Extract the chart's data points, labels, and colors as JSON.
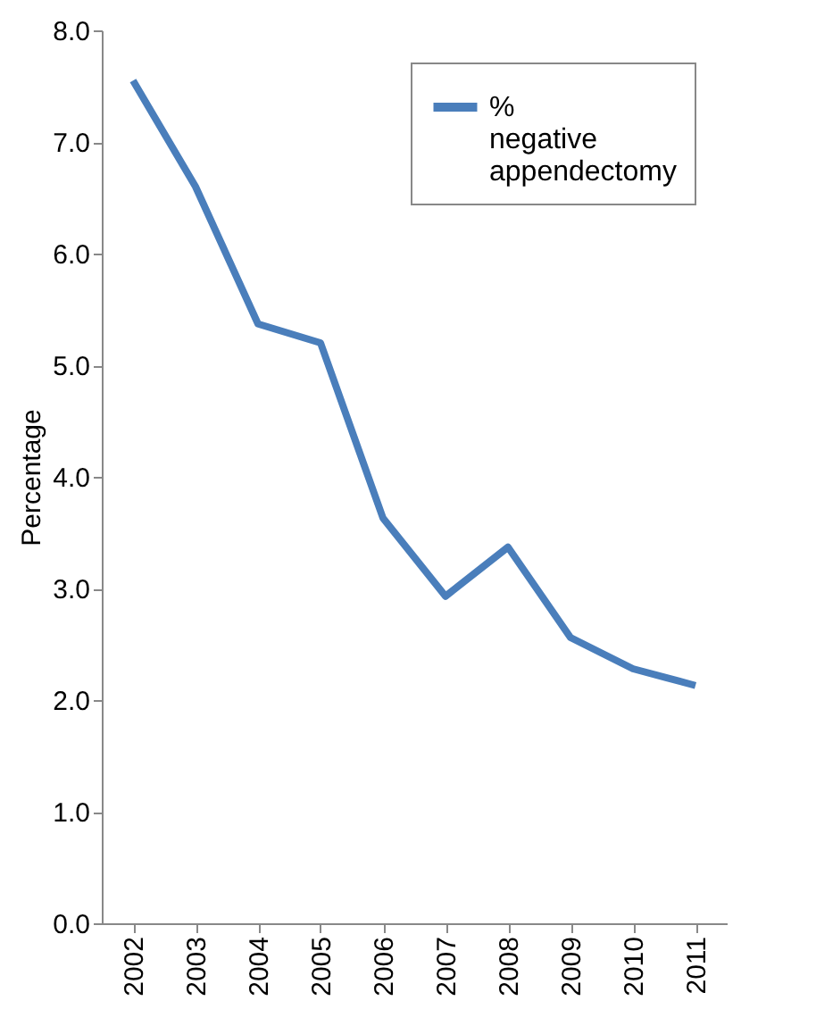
{
  "chart_data": {
    "type": "line",
    "ylabel": "Percentage",
    "categories": [
      "2002",
      "2003",
      "2004",
      "2005",
      "2006",
      "2007",
      "2008",
      "2009",
      "2010",
      "2011"
    ],
    "series": [
      {
        "name": "% negative appendectomy",
        "color": "#4a7ebb",
        "values": [
          7.55,
          6.6,
          5.37,
          5.2,
          3.63,
          2.93,
          3.37,
          2.56,
          2.28,
          2.13
        ]
      }
    ],
    "ylim": [
      0,
      8
    ],
    "yticks": [
      {
        "value": 0,
        "label": "0.0"
      },
      {
        "value": 1,
        "label": "1.0"
      },
      {
        "value": 2,
        "label": "2.0"
      },
      {
        "value": 3,
        "label": "3.0"
      },
      {
        "value": 4,
        "label": "4.0"
      },
      {
        "value": 5,
        "label": "5.0"
      },
      {
        "value": 6,
        "label": "6.0"
      },
      {
        "value": 7,
        "label": "7.0"
      },
      {
        "value": 8,
        "label": "8.0"
      }
    ],
    "grid": false,
    "legend": "top right",
    "marker": "none",
    "line_style": "solid"
  }
}
